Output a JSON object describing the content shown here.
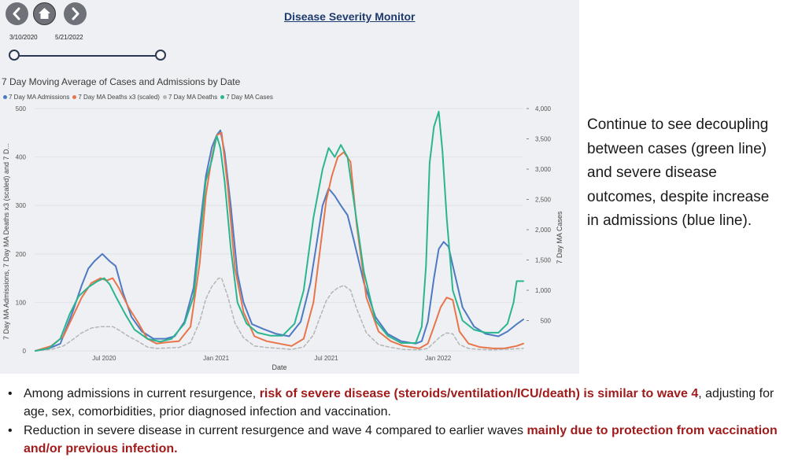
{
  "dashboard": {
    "title": "Disease Severity Monitor",
    "nav": {
      "back_icon": "chevron-left-icon",
      "home_icon": "home-icon",
      "forward_icon": "chevron-right-icon"
    },
    "date_range": {
      "start": "3/10/2020",
      "end": "5/21/2022"
    }
  },
  "chart_data": {
    "type": "line",
    "title": "7 Day Moving Average of Cases and Admissions by Date",
    "xlabel": "Date",
    "ylabel_left": "7 Day MA Admissions, 7 Day MA Deaths x3 (scaled) and 7 D...",
    "ylabel_right": "7 Day MA Cases",
    "y_left_ticks": [
      "0",
      "100",
      "200",
      "300",
      "400",
      "500"
    ],
    "y_right_ticks": [
      "500",
      "1,000",
      "1,500",
      "2,000",
      "2,500",
      "3,000",
      "3,500",
      "4,000"
    ],
    "x_ticks": [
      {
        "label": "Jul 2020",
        "x": "2020-07-01"
      },
      {
        "label": "Jan 2021",
        "x": "2021-01-01"
      },
      {
        "label": "Jul 2021",
        "x": "2021-07-01"
      },
      {
        "label": "Jan 2022",
        "x": "2022-01-01"
      }
    ],
    "xlim": [
      "2020-03-10",
      "2022-05-21"
    ],
    "ylim_left": [
      0,
      500
    ],
    "ylim_right": [
      0,
      4000
    ],
    "legend_position": "top-left",
    "series": [
      {
        "name": "7 Day MA Admissions",
        "color": "#4e79c3",
        "axis": "left",
        "points": [
          [
            "2020-03-10",
            0
          ],
          [
            "2020-04-01",
            5
          ],
          [
            "2020-04-20",
            15
          ],
          [
            "2020-05-10",
            80
          ],
          [
            "2020-05-25",
            135
          ],
          [
            "2020-06-05",
            170
          ],
          [
            "2020-06-15",
            185
          ],
          [
            "2020-06-28",
            200
          ],
          [
            "2020-07-10",
            185
          ],
          [
            "2020-07-20",
            175
          ],
          [
            "2020-08-01",
            120
          ],
          [
            "2020-08-15",
            70
          ],
          [
            "2020-09-01",
            40
          ],
          [
            "2020-09-20",
            25
          ],
          [
            "2020-10-10",
            25
          ],
          [
            "2020-10-25",
            30
          ],
          [
            "2020-11-10",
            60
          ],
          [
            "2020-11-25",
            130
          ],
          [
            "2020-12-05",
            250
          ],
          [
            "2020-12-15",
            360
          ],
          [
            "2020-12-25",
            420
          ],
          [
            "2021-01-02",
            445
          ],
          [
            "2021-01-08",
            455
          ],
          [
            "2021-01-15",
            410
          ],
          [
            "2021-01-25",
            300
          ],
          [
            "2021-02-05",
            160
          ],
          [
            "2021-02-15",
            100
          ],
          [
            "2021-03-01",
            55
          ],
          [
            "2021-03-20",
            45
          ],
          [
            "2021-04-10",
            35
          ],
          [
            "2021-05-01",
            30
          ],
          [
            "2021-05-20",
            60
          ],
          [
            "2021-06-05",
            140
          ],
          [
            "2021-06-15",
            220
          ],
          [
            "2021-06-25",
            300
          ],
          [
            "2021-07-05",
            335
          ],
          [
            "2021-07-15",
            320
          ],
          [
            "2021-07-25",
            300
          ],
          [
            "2021-08-05",
            280
          ],
          [
            "2021-08-15",
            230
          ],
          [
            "2021-09-01",
            140
          ],
          [
            "2021-09-20",
            70
          ],
          [
            "2021-10-10",
            35
          ],
          [
            "2021-11-01",
            20
          ],
          [
            "2021-11-25",
            15
          ],
          [
            "2021-12-05",
            20
          ],
          [
            "2021-12-15",
            60
          ],
          [
            "2021-12-25",
            150
          ],
          [
            "2022-01-02",
            210
          ],
          [
            "2022-01-10",
            225
          ],
          [
            "2022-01-18",
            215
          ],
          [
            "2022-01-28",
            160
          ],
          [
            "2022-02-10",
            90
          ],
          [
            "2022-03-01",
            50
          ],
          [
            "2022-03-20",
            35
          ],
          [
            "2022-04-10",
            30
          ],
          [
            "2022-04-25",
            40
          ],
          [
            "2022-05-10",
            55
          ],
          [
            "2022-05-21",
            65
          ]
        ]
      },
      {
        "name": "7 Day MA Deaths x3 (scaled)",
        "color": "#e8754a",
        "axis": "left",
        "points": [
          [
            "2020-03-10",
            0
          ],
          [
            "2020-04-05",
            10
          ],
          [
            "2020-04-25",
            30
          ],
          [
            "2020-05-10",
            70
          ],
          [
            "2020-05-25",
            110
          ],
          [
            "2020-06-10",
            140
          ],
          [
            "2020-06-25",
            150
          ],
          [
            "2020-07-05",
            145
          ],
          [
            "2020-07-15",
            150
          ],
          [
            "2020-07-25",
            130
          ],
          [
            "2020-08-10",
            90
          ],
          [
            "2020-08-25",
            60
          ],
          [
            "2020-09-10",
            25
          ],
          [
            "2020-09-25",
            15
          ],
          [
            "2020-10-15",
            18
          ],
          [
            "2020-11-01",
            20
          ],
          [
            "2020-11-20",
            50
          ],
          [
            "2020-12-05",
            180
          ],
          [
            "2020-12-15",
            320
          ],
          [
            "2020-12-25",
            400
          ],
          [
            "2021-01-02",
            445
          ],
          [
            "2021-01-10",
            450
          ],
          [
            "2021-01-20",
            340
          ],
          [
            "2021-02-01",
            170
          ],
          [
            "2021-02-15",
            80
          ],
          [
            "2021-03-05",
            30
          ],
          [
            "2021-03-25",
            20
          ],
          [
            "2021-04-15",
            15
          ],
          [
            "2021-05-05",
            10
          ],
          [
            "2021-05-25",
            25
          ],
          [
            "2021-06-10",
            100
          ],
          [
            "2021-06-20",
            200
          ],
          [
            "2021-07-01",
            310
          ],
          [
            "2021-07-10",
            360
          ],
          [
            "2021-07-20",
            400
          ],
          [
            "2021-07-30",
            410
          ],
          [
            "2021-08-10",
            390
          ],
          [
            "2021-08-20",
            260
          ],
          [
            "2021-09-05",
            110
          ],
          [
            "2021-09-25",
            40
          ],
          [
            "2021-10-15",
            20
          ],
          [
            "2021-11-05",
            10
          ],
          [
            "2021-12-01",
            5
          ],
          [
            "2021-12-15",
            15
          ],
          [
            "2021-12-25",
            50
          ],
          [
            "2022-01-05",
            90
          ],
          [
            "2022-01-15",
            110
          ],
          [
            "2022-01-25",
            105
          ],
          [
            "2022-02-05",
            40
          ],
          [
            "2022-02-20",
            15
          ],
          [
            "2022-03-10",
            8
          ],
          [
            "2022-04-01",
            5
          ],
          [
            "2022-04-20",
            5
          ],
          [
            "2022-05-10",
            10
          ],
          [
            "2022-05-21",
            15
          ]
        ]
      },
      {
        "name": "7 Day MA Deaths",
        "color": "#b5b5b5",
        "axis": "left",
        "points": [
          [
            "2020-03-10",
            0
          ],
          [
            "2020-04-05",
            3
          ],
          [
            "2020-04-25",
            10
          ],
          [
            "2020-05-10",
            23
          ],
          [
            "2020-05-25",
            37
          ],
          [
            "2020-06-10",
            47
          ],
          [
            "2020-06-25",
            50
          ],
          [
            "2020-07-15",
            50
          ],
          [
            "2020-07-25",
            43
          ],
          [
            "2020-08-10",
            30
          ],
          [
            "2020-08-25",
            20
          ],
          [
            "2020-09-10",
            8
          ],
          [
            "2020-09-25",
            5
          ],
          [
            "2020-10-15",
            6
          ],
          [
            "2020-11-01",
            7
          ],
          [
            "2020-11-20",
            17
          ],
          [
            "2020-12-05",
            60
          ],
          [
            "2020-12-15",
            107
          ],
          [
            "2020-12-25",
            133
          ],
          [
            "2021-01-05",
            150
          ],
          [
            "2021-01-10",
            150
          ],
          [
            "2021-01-20",
            113
          ],
          [
            "2021-02-01",
            57
          ],
          [
            "2021-02-15",
            27
          ],
          [
            "2021-03-05",
            10
          ],
          [
            "2021-03-25",
            7
          ],
          [
            "2021-04-15",
            5
          ],
          [
            "2021-05-05",
            3
          ],
          [
            "2021-05-25",
            8
          ],
          [
            "2021-06-10",
            33
          ],
          [
            "2021-06-20",
            67
          ],
          [
            "2021-07-01",
            103
          ],
          [
            "2021-07-10",
            120
          ],
          [
            "2021-07-20",
            130
          ],
          [
            "2021-07-30",
            135
          ],
          [
            "2021-08-10",
            125
          ],
          [
            "2021-08-20",
            87
          ],
          [
            "2021-09-05",
            37
          ],
          [
            "2021-09-25",
            13
          ],
          [
            "2021-10-15",
            7
          ],
          [
            "2021-11-05",
            3
          ],
          [
            "2021-12-01",
            2
          ],
          [
            "2021-12-15",
            5
          ],
          [
            "2021-12-25",
            17
          ],
          [
            "2022-01-05",
            30
          ],
          [
            "2022-01-15",
            37
          ],
          [
            "2022-01-25",
            35
          ],
          [
            "2022-02-05",
            13
          ],
          [
            "2022-02-20",
            5
          ],
          [
            "2022-03-10",
            3
          ],
          [
            "2022-04-01",
            2
          ],
          [
            "2022-05-21",
            5
          ]
        ]
      },
      {
        "name": "7 Day MA Cases",
        "color": "#2bb58f",
        "axis": "right",
        "points": [
          [
            "2020-03-10",
            0
          ],
          [
            "2020-04-01",
            40
          ],
          [
            "2020-04-20",
            200
          ],
          [
            "2020-05-05",
            600
          ],
          [
            "2020-05-20",
            900
          ],
          [
            "2020-06-05",
            1050
          ],
          [
            "2020-06-20",
            1150
          ],
          [
            "2020-07-01",
            1200
          ],
          [
            "2020-07-10",
            1100
          ],
          [
            "2020-07-20",
            900
          ],
          [
            "2020-08-05",
            600
          ],
          [
            "2020-08-20",
            350
          ],
          [
            "2020-09-10",
            200
          ],
          [
            "2020-10-01",
            150
          ],
          [
            "2020-10-20",
            200
          ],
          [
            "2020-11-10",
            450
          ],
          [
            "2020-11-25",
            900
          ],
          [
            "2020-12-05",
            1800
          ],
          [
            "2020-12-15",
            2800
          ],
          [
            "2020-12-25",
            3150
          ],
          [
            "2021-01-02",
            3550
          ],
          [
            "2021-01-08",
            3350
          ],
          [
            "2021-01-15",
            2800
          ],
          [
            "2021-01-25",
            1700
          ],
          [
            "2021-02-05",
            800
          ],
          [
            "2021-02-20",
            450
          ],
          [
            "2021-03-10",
            300
          ],
          [
            "2021-04-01",
            250
          ],
          [
            "2021-04-20",
            250
          ],
          [
            "2021-05-10",
            450
          ],
          [
            "2021-05-25",
            1000
          ],
          [
            "2021-06-10",
            2200
          ],
          [
            "2021-06-25",
            3000
          ],
          [
            "2021-07-05",
            3350
          ],
          [
            "2021-07-15",
            3200
          ],
          [
            "2021-07-25",
            3400
          ],
          [
            "2021-08-05",
            3200
          ],
          [
            "2021-08-15",
            2500
          ],
          [
            "2021-09-01",
            1300
          ],
          [
            "2021-09-20",
            500
          ],
          [
            "2021-10-10",
            250
          ],
          [
            "2021-11-01",
            130
          ],
          [
            "2021-11-25",
            130
          ],
          [
            "2021-12-05",
            400
          ],
          [
            "2021-12-12",
            1400
          ],
          [
            "2021-12-18",
            3100
          ],
          [
            "2021-12-25",
            3700
          ],
          [
            "2022-01-02",
            3950
          ],
          [
            "2022-01-08",
            3300
          ],
          [
            "2022-01-15",
            2200
          ],
          [
            "2022-01-25",
            1000
          ],
          [
            "2022-02-10",
            500
          ],
          [
            "2022-03-01",
            350
          ],
          [
            "2022-03-20",
            300
          ],
          [
            "2022-04-10",
            300
          ],
          [
            "2022-04-25",
            450
          ],
          [
            "2022-05-05",
            800
          ],
          [
            "2022-05-10",
            1150
          ],
          [
            "2022-05-21",
            1150
          ]
        ]
      }
    ]
  },
  "commentary": "Continue to see decoupling between cases (green line) and severe disease outcomes, despite increase in admissions (blue line).",
  "bullets": [
    {
      "pre": "Among admissions in current resurgence, ",
      "highlight": "risk of severe disease (steroids/ventilation/ICU/death) is similar to wave 4",
      "post": ", adjusting for age, sex, comorbidities, prior diagnosed infection and vaccination."
    },
    {
      "pre": "Reduction in severe disease in current resurgence and wave 4 compared to earlier waves ",
      "highlight": "mainly due to protection from vaccination and/or previous infection.",
      "post": ""
    }
  ]
}
